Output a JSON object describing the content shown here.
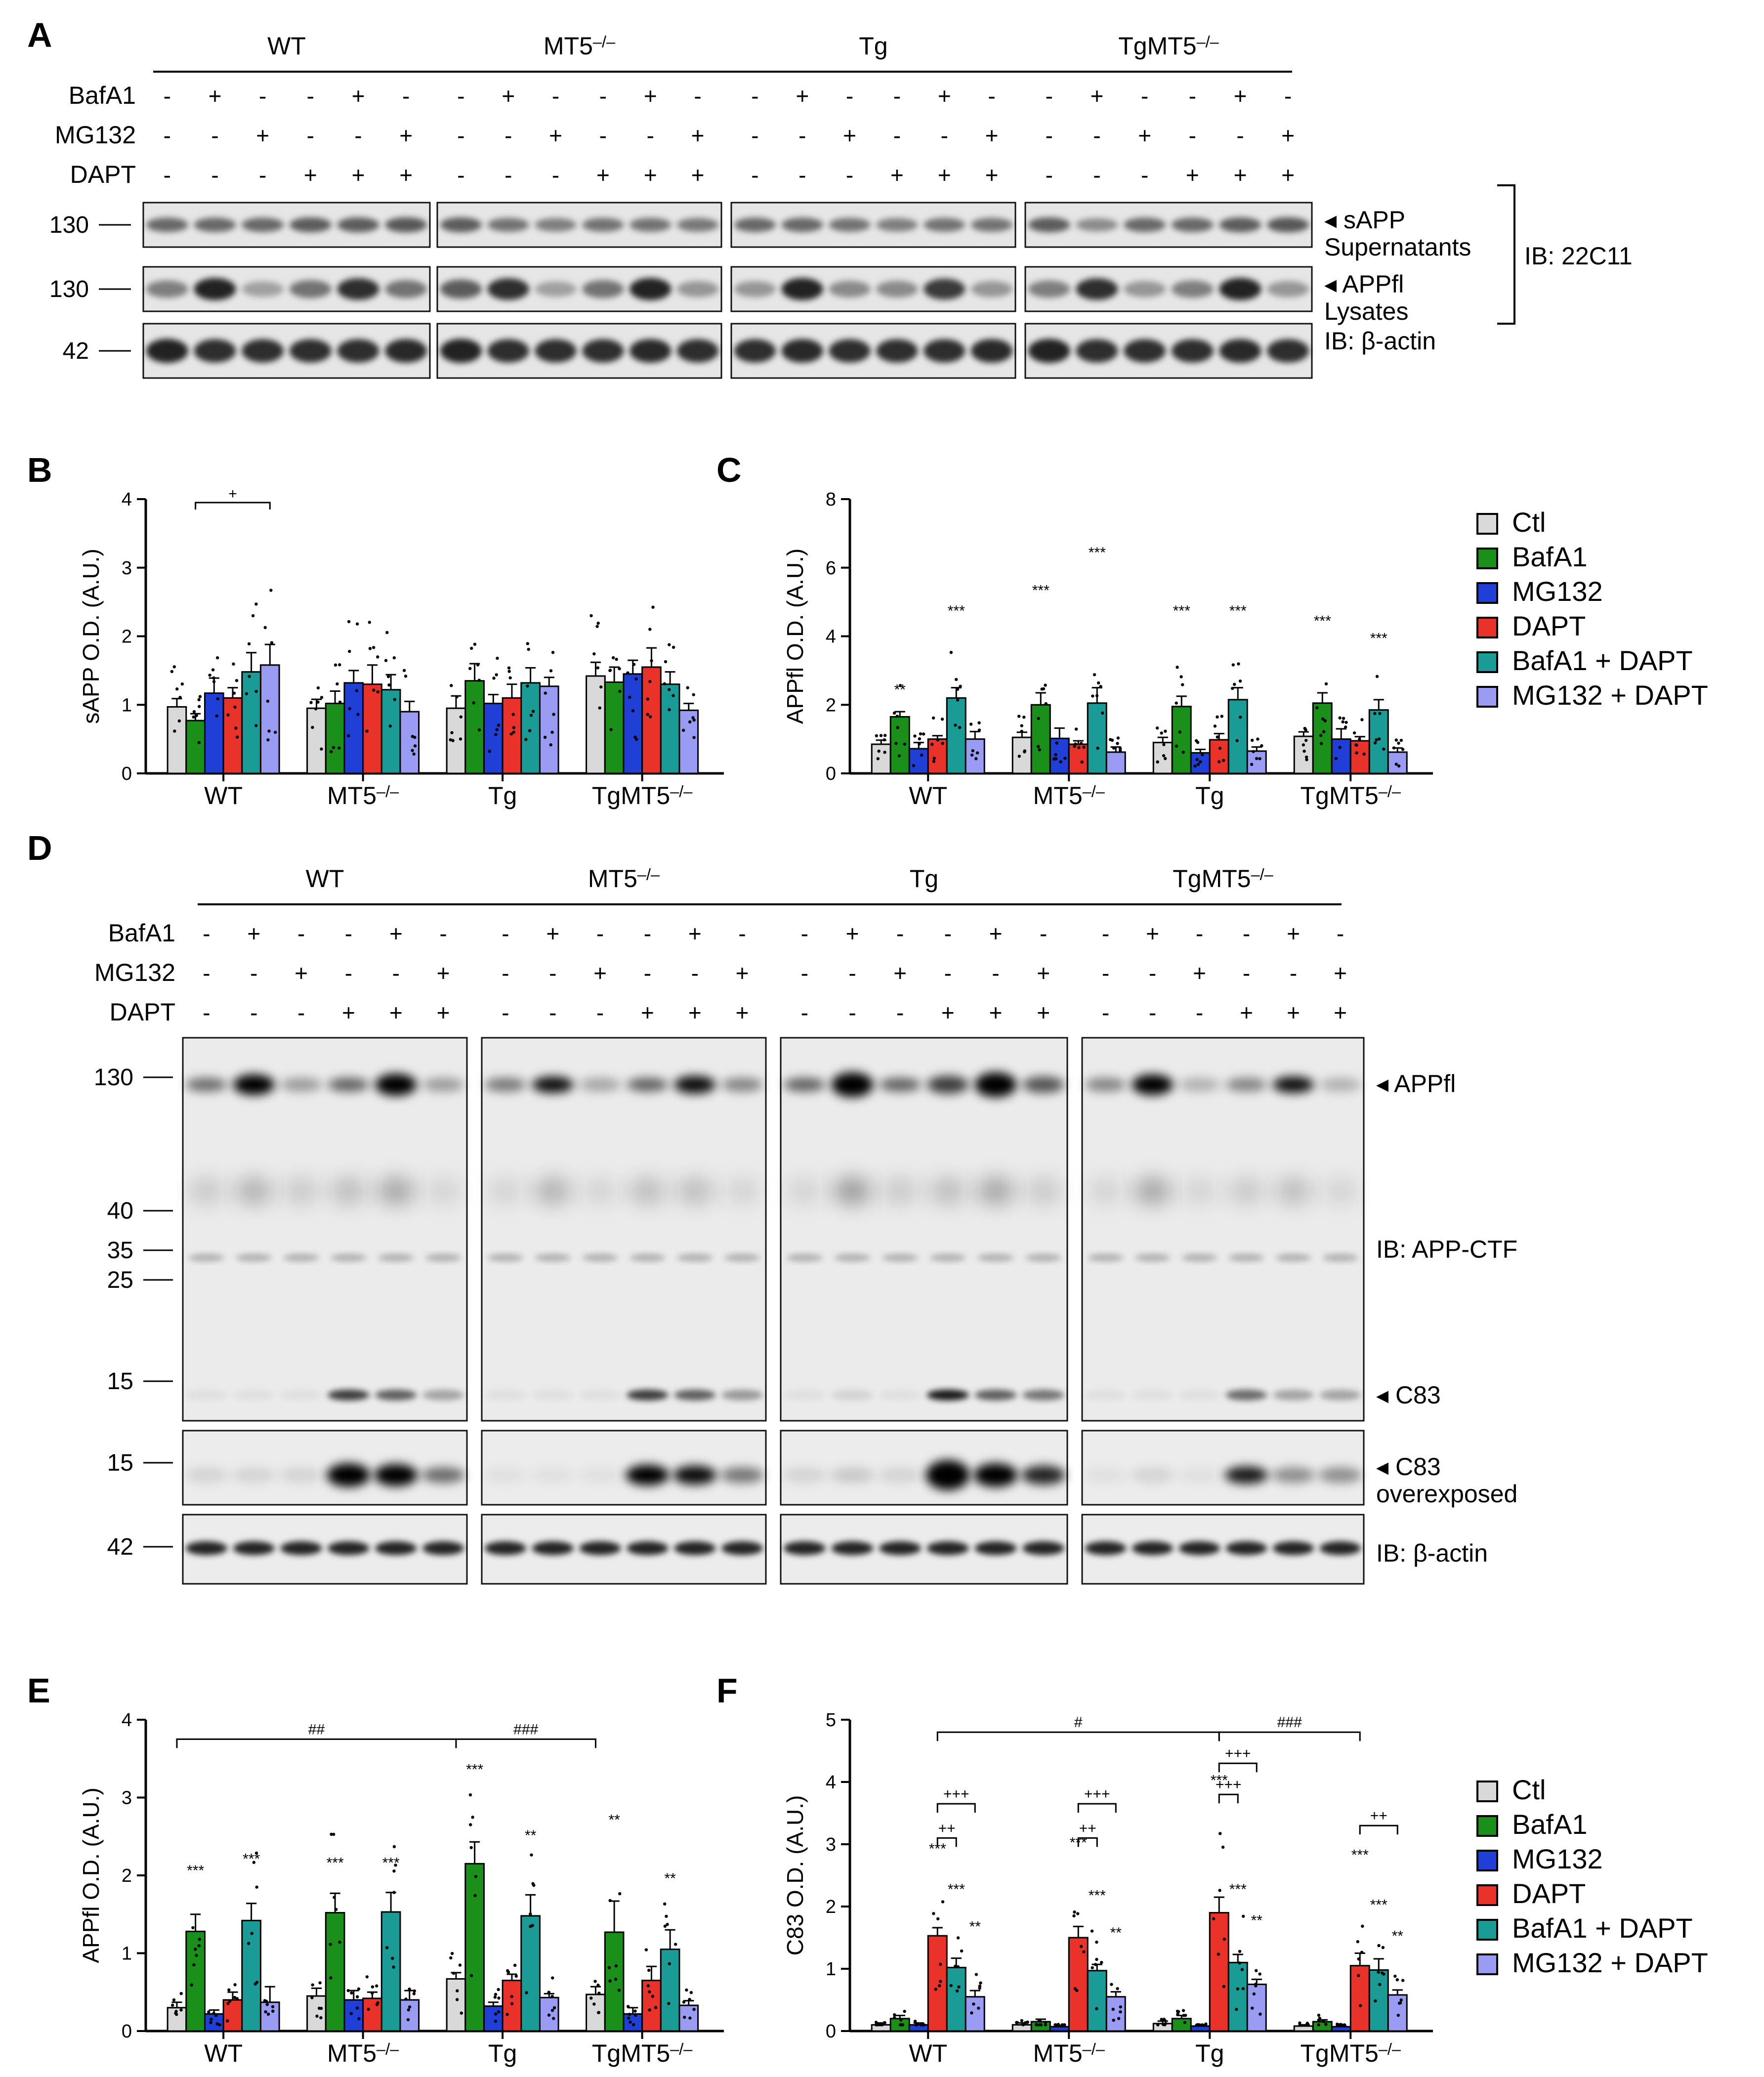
{
  "panels": {
    "A": {
      "letter": "A",
      "groups": [
        "WT",
        "MT5–/–",
        "Tg",
        "TgMT5–/–"
      ],
      "conditions": [
        {
          "name": "BafA1",
          "values": [
            "-",
            "+",
            "-",
            "-",
            "+",
            "-"
          ]
        },
        {
          "name": "MG132",
          "values": [
            "-",
            "-",
            "+",
            "-",
            "-",
            "+"
          ]
        },
        {
          "name": "DAPT",
          "values": [
            "-",
            "-",
            "-",
            "+",
            "+",
            "+"
          ]
        }
      ],
      "blots": [
        {
          "mw": "130",
          "right": [
            "◂ sAPP",
            "Supernatants"
          ],
          "intensity": [
            0.55,
            0.55,
            0.55,
            0.6,
            0.6,
            0.62,
            0.6,
            0.5,
            0.45,
            0.5,
            0.5,
            0.48,
            0.55,
            0.55,
            0.5,
            0.45,
            0.5,
            0.5,
            0.6,
            0.4,
            0.55,
            0.55,
            0.6,
            0.62
          ],
          "thick": 0.35
        },
        {
          "mw": "130",
          "right": [
            "◂ APPfl",
            "Lysates"
          ],
          "intensity": [
            0.45,
            0.85,
            0.3,
            0.5,
            0.8,
            0.5,
            0.6,
            0.8,
            0.3,
            0.5,
            0.85,
            0.35,
            0.35,
            0.85,
            0.4,
            0.4,
            0.75,
            0.35,
            0.45,
            0.8,
            0.35,
            0.45,
            0.85,
            0.35
          ],
          "thick": 0.45
        },
        {
          "mw": "42",
          "right": [
            "IB: β-actin"
          ],
          "intensity": [
            0.85,
            0.8,
            0.8,
            0.8,
            0.8,
            0.82,
            0.85,
            0.8,
            0.8,
            0.8,
            0.82,
            0.8,
            0.8,
            0.82,
            0.8,
            0.8,
            0.8,
            0.82,
            0.85,
            0.8,
            0.8,
            0.8,
            0.82,
            0.8
          ],
          "thick": 0.4
        }
      ],
      "bracket_label": "IB: 22C11"
    },
    "B": {
      "letter": "B"
    },
    "C": {
      "letter": "C"
    },
    "D": {
      "letter": "D",
      "groups": [
        "WT",
        "MT5–/–",
        "Tg",
        "TgMT5–/–"
      ],
      "conditions": [
        {
          "name": "BafA1",
          "values": [
            "-",
            "+",
            "-",
            "-",
            "+",
            "-"
          ]
        },
        {
          "name": "MG132",
          "values": [
            "-",
            "-",
            "+",
            "-",
            "-",
            "+"
          ]
        },
        {
          "name": "DAPT",
          "values": [
            "-",
            "-",
            "-",
            "+",
            "+",
            "+"
          ]
        }
      ],
      "mw_main": [
        "130",
        "40",
        "35",
        "25",
        "15"
      ],
      "mw_over": "15",
      "mw_actin": "42",
      "labels": {
        "appfl": "◂ APPfl",
        "ctf": "IB: APP-CTF",
        "c83": "◂ C83",
        "c83over": [
          "◂ C83",
          "overexposed"
        ],
        "actin": "IB: β-actin"
      }
    },
    "E": {
      "letter": "E"
    },
    "F": {
      "letter": "F"
    }
  },
  "legend": {
    "items": [
      {
        "label": "Ctl",
        "color": "#d9d9d9"
      },
      {
        "label": "BafA1",
        "color": "#1a8f1a"
      },
      {
        "label": "MG132",
        "color": "#1f3fd6"
      },
      {
        "label": "DAPT",
        "color": "#e8322a"
      },
      {
        "label": "BafA1 + DAPT",
        "color": "#1a9b96"
      },
      {
        "label": "MG132 + DAPT",
        "color": "#9a9cf4"
      }
    ]
  },
  "chart_data": [
    {
      "panel": "B",
      "type": "bar",
      "categories": [
        "WT",
        "MT5–/–",
        "Tg",
        "TgMT5–/–"
      ],
      "ylabel": "sAPP O.D. (A.U.)",
      "ylim": [
        0,
        4
      ],
      "yticks": [
        0,
        1,
        2,
        3,
        4
      ],
      "series": [
        {
          "name": "Ctl",
          "values": [
            0.97,
            0.95,
            0.95,
            1.42
          ],
          "err": [
            0.12,
            0.13,
            0.18,
            0.2
          ]
        },
        {
          "name": "BafA1",
          "values": [
            0.77,
            1.02,
            1.35,
            1.33
          ],
          "err": [
            0.1,
            0.18,
            0.25,
            0.22
          ]
        },
        {
          "name": "MG132",
          "values": [
            1.17,
            1.32,
            1.02,
            1.45
          ],
          "err": [
            0.22,
            0.18,
            0.13,
            0.2
          ]
        },
        {
          "name": "DAPT",
          "values": [
            1.1,
            1.3,
            1.1,
            1.55
          ],
          "err": [
            0.15,
            0.28,
            0.2,
            0.28
          ]
        },
        {
          "name": "BafA1 + DAPT",
          "values": [
            1.48,
            1.22,
            1.32,
            1.3
          ],
          "err": [
            0.28,
            0.22,
            0.22,
            0.18
          ]
        },
        {
          "name": "MG132 + DAPT",
          "values": [
            1.58,
            0.9,
            1.27,
            0.92
          ],
          "err": [
            0.3,
            0.15,
            0.13,
            0.1
          ]
        }
      ],
      "annotations": [
        {
          "text": "+",
          "group": 0,
          "from": 1,
          "to": 5,
          "y": 3.95
        }
      ]
    },
    {
      "panel": "C",
      "type": "bar",
      "categories": [
        "WT",
        "MT5–/–",
        "Tg",
        "TgMT5–/–"
      ],
      "ylabel": "APPfl O.D. (A.U.)",
      "ylim": [
        0,
        8
      ],
      "yticks": [
        0,
        2,
        4,
        6,
        8
      ],
      "series": [
        {
          "name": "Ctl",
          "values": [
            0.85,
            1.05,
            0.9,
            1.08
          ],
          "err": [
            0.12,
            0.15,
            0.15,
            0.13
          ]
        },
        {
          "name": "BafA1",
          "values": [
            1.65,
            2.0,
            1.95,
            2.05
          ],
          "err": [
            0.15,
            0.35,
            0.3,
            0.3
          ]
        },
        {
          "name": "MG132",
          "values": [
            0.72,
            1.02,
            0.6,
            1.0
          ],
          "err": [
            0.18,
            0.3,
            0.1,
            0.3
          ]
        },
        {
          "name": "DAPT",
          "values": [
            1.0,
            0.85,
            0.98,
            0.95
          ],
          "err": [
            0.1,
            0.1,
            0.18,
            0.12
          ]
        },
        {
          "name": "BafA1 + DAPT",
          "values": [
            2.2,
            2.05,
            2.15,
            1.85
          ],
          "err": [
            0.3,
            0.45,
            0.35,
            0.3
          ]
        },
        {
          "name": "MG132 + DAPT",
          "values": [
            1.0,
            0.62,
            0.65,
            0.62
          ],
          "err": [
            0.22,
            0.15,
            0.12,
            0.12
          ]
        }
      ],
      "stars": [
        {
          "group": 0,
          "series": 1,
          "text": "**",
          "y": 2.3
        },
        {
          "group": 0,
          "series": 4,
          "text": "***",
          "y": 4.6
        },
        {
          "group": 1,
          "series": 1,
          "text": "***",
          "y": 5.2
        },
        {
          "group": 1,
          "series": 4,
          "text": "***",
          "y": 6.3
        },
        {
          "group": 2,
          "series": 1,
          "text": "***",
          "y": 4.6
        },
        {
          "group": 2,
          "series": 4,
          "text": "***",
          "y": 4.6
        },
        {
          "group": 3,
          "series": 1,
          "text": "***",
          "y": 4.3
        },
        {
          "group": 3,
          "series": 4,
          "text": "***",
          "y": 3.8
        }
      ]
    },
    {
      "panel": "E",
      "type": "bar",
      "categories": [
        "WT",
        "MT5–/–",
        "Tg",
        "TgMT5–/–"
      ],
      "ylabel": "APPfl O.D. (A.U.)",
      "ylim": [
        0,
        4
      ],
      "yticks": [
        0,
        1,
        2,
        3,
        4
      ],
      "series": [
        {
          "name": "Ctl",
          "values": [
            0.3,
            0.45,
            0.67,
            0.47
          ],
          "err": [
            0.07,
            0.1,
            0.08,
            0.1
          ]
        },
        {
          "name": "BafA1",
          "values": [
            1.28,
            1.52,
            2.15,
            1.27
          ],
          "err": [
            0.22,
            0.25,
            0.28,
            0.4
          ]
        },
        {
          "name": "MG132",
          "values": [
            0.22,
            0.4,
            0.32,
            0.22
          ],
          "err": [
            0.05,
            0.12,
            0.05,
            0.08
          ]
        },
        {
          "name": "DAPT",
          "values": [
            0.4,
            0.42,
            0.65,
            0.65
          ],
          "err": [
            0.1,
            0.08,
            0.08,
            0.18
          ]
        },
        {
          "name": "BafA1 + DAPT",
          "values": [
            1.42,
            1.53,
            1.48,
            1.05
          ],
          "err": [
            0.22,
            0.25,
            0.27,
            0.25
          ]
        },
        {
          "name": "MG132 + DAPT",
          "values": [
            0.37,
            0.4,
            0.43,
            0.33
          ],
          "err": [
            0.2,
            0.12,
            0.05,
            0.06
          ]
        }
      ],
      "stars": [
        {
          "group": 0,
          "series": 1,
          "text": "***",
          "y": 2.0
        },
        {
          "group": 0,
          "series": 4,
          "text": "***",
          "y": 2.15
        },
        {
          "group": 1,
          "series": 1,
          "text": "***",
          "y": 2.1
        },
        {
          "group": 1,
          "series": 4,
          "text": "***",
          "y": 2.1
        },
        {
          "group": 2,
          "series": 1,
          "text": "***",
          "y": 3.3
        },
        {
          "group": 2,
          "series": 4,
          "text": "**",
          "y": 2.45
        },
        {
          "group": 3,
          "series": 1,
          "text": "**",
          "y": 2.65
        },
        {
          "group": 3,
          "series": 4,
          "text": "**",
          "y": 1.9
        }
      ],
      "brackets": [
        {
          "text": "##",
          "from": [
            0,
            0
          ],
          "to": [
            2,
            0
          ],
          "y": 3.75
        },
        {
          "text": "###",
          "from": [
            2,
            0
          ],
          "to": [
            3,
            0
          ],
          "y": 3.75
        }
      ]
    },
    {
      "panel": "F",
      "type": "bar",
      "categories": [
        "WT",
        "MT5–/–",
        "Tg",
        "TgMT5–/–"
      ],
      "ylabel": "C83 O.D. (A.U.)",
      "ylim": [
        0,
        5
      ],
      "yticks": [
        0,
        1,
        2,
        3,
        4,
        5
      ],
      "series": [
        {
          "name": "Ctl",
          "values": [
            0.1,
            0.1,
            0.12,
            0.08
          ],
          "err": [
            0.03,
            0.03,
            0.04,
            0.02
          ]
        },
        {
          "name": "BafA1",
          "values": [
            0.2,
            0.15,
            0.2,
            0.15
          ],
          "err": [
            0.05,
            0.04,
            0.05,
            0.03
          ]
        },
        {
          "name": "MG132",
          "values": [
            0.1,
            0.07,
            0.08,
            0.07
          ],
          "err": [
            0.03,
            0.02,
            0.02,
            0.02
          ]
        },
        {
          "name": "DAPT",
          "values": [
            1.53,
            1.5,
            1.9,
            1.05
          ],
          "err": [
            0.13,
            0.18,
            0.25,
            0.2
          ]
        },
        {
          "name": "BafA1 + DAPT",
          "values": [
            1.02,
            0.97,
            1.1,
            0.98
          ],
          "err": [
            0.15,
            0.1,
            0.13,
            0.18
          ]
        },
        {
          "name": "MG132 + DAPT",
          "values": [
            0.55,
            0.55,
            0.75,
            0.58
          ],
          "err": [
            0.1,
            0.08,
            0.08,
            0.08
          ]
        }
      ],
      "stars": [
        {
          "group": 0,
          "series": 3,
          "text": "***",
          "y": 2.85
        },
        {
          "group": 0,
          "series": 4,
          "text": "***",
          "y": 2.2
        },
        {
          "group": 0,
          "series": 5,
          "text": "**",
          "y": 1.6
        },
        {
          "group": 1,
          "series": 3,
          "text": "***",
          "y": 2.95
        },
        {
          "group": 1,
          "series": 4,
          "text": "***",
          "y": 2.1
        },
        {
          "group": 1,
          "series": 5,
          "text": "**",
          "y": 1.5
        },
        {
          "group": 2,
          "series": 3,
          "text": "***",
          "y": 3.95
        },
        {
          "group": 2,
          "series": 4,
          "text": "***",
          "y": 2.2
        },
        {
          "group": 2,
          "series": 5,
          "text": "**",
          "y": 1.7
        },
        {
          "group": 3,
          "series": 3,
          "text": "***",
          "y": 2.75
        },
        {
          "group": 3,
          "series": 4,
          "text": "***",
          "y": 1.95
        },
        {
          "group": 3,
          "series": 5,
          "text": "**",
          "y": 1.45
        }
      ],
      "brackets": [
        {
          "text": "#",
          "from": [
            0,
            3
          ],
          "to": [
            2,
            3
          ],
          "y": 4.8
        },
        {
          "text": "###",
          "from": [
            2,
            3
          ],
          "to": [
            3,
            3
          ],
          "y": 4.8
        },
        {
          "text": "+++",
          "from": [
            2,
            3
          ],
          "to": [
            2,
            5
          ],
          "y": 4.3
        },
        {
          "text": "+++",
          "from": [
            2,
            3
          ],
          "to": [
            2,
            4
          ],
          "y": 3.8
        },
        {
          "text": "+++",
          "from": [
            0,
            3
          ],
          "to": [
            0,
            5
          ],
          "y": 3.65
        },
        {
          "text": "++",
          "from": [
            0,
            3
          ],
          "to": [
            0,
            4
          ],
          "y": 3.1
        },
        {
          "text": "+++",
          "from": [
            1,
            3
          ],
          "to": [
            1,
            5
          ],
          "y": 3.65
        },
        {
          "text": "++",
          "from": [
            1,
            3
          ],
          "to": [
            1,
            4
          ],
          "y": 3.1
        },
        {
          "text": "++",
          "from": [
            3,
            3
          ],
          "to": [
            3,
            5
          ],
          "y": 3.3
        }
      ]
    }
  ]
}
